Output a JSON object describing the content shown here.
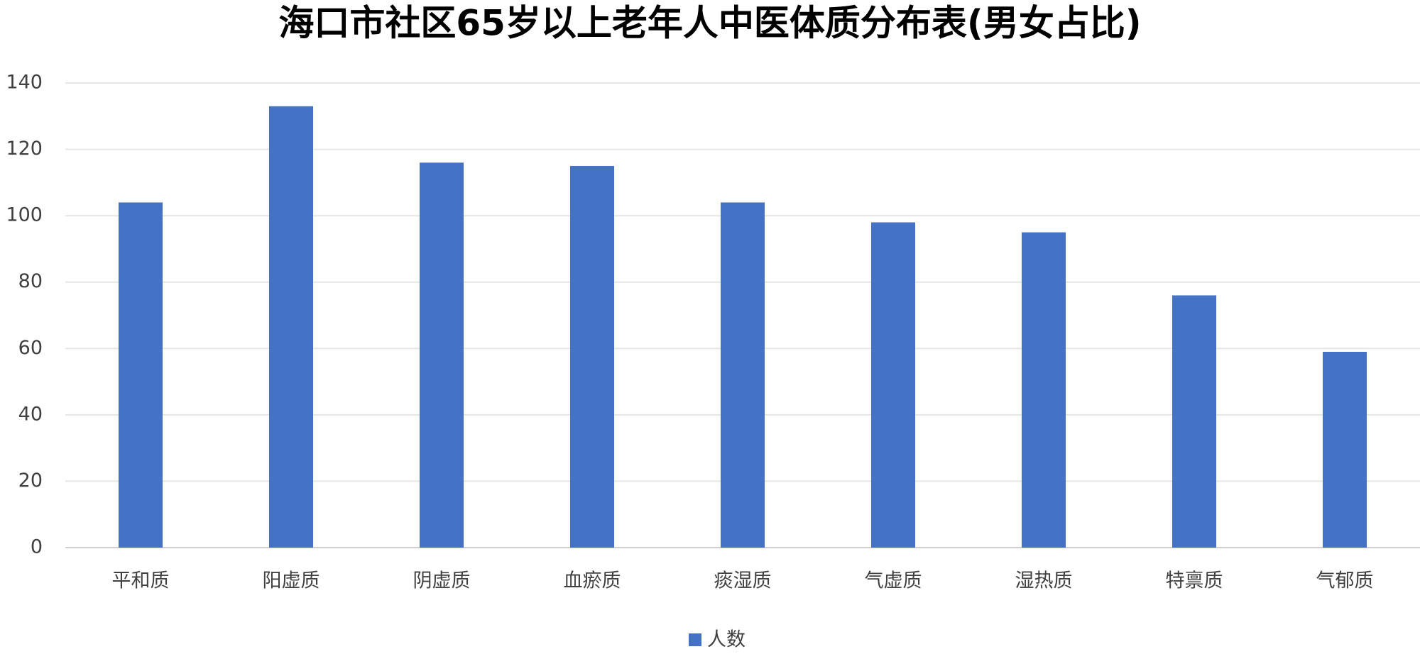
{
  "chart_data": {
    "type": "bar",
    "title": "海口市社区65岁以上老年人中医体质分布表(男女占比)",
    "categories": [
      "平和质",
      "阳虚质",
      "阴虚质",
      "血瘀质",
      "痰湿质",
      "气虚质",
      "湿热质",
      "特禀质",
      "气郁质"
    ],
    "series": [
      {
        "name": "人数",
        "color": "#4472c4",
        "values": [
          104,
          133,
          116,
          115,
          104,
          98,
          95,
          76,
          59
        ]
      }
    ],
    "ylim": [
      0,
      140
    ],
    "yticks": [
      0,
      20,
      40,
      60,
      80,
      100,
      120,
      140
    ],
    "grid": true,
    "legend": "bottom"
  }
}
